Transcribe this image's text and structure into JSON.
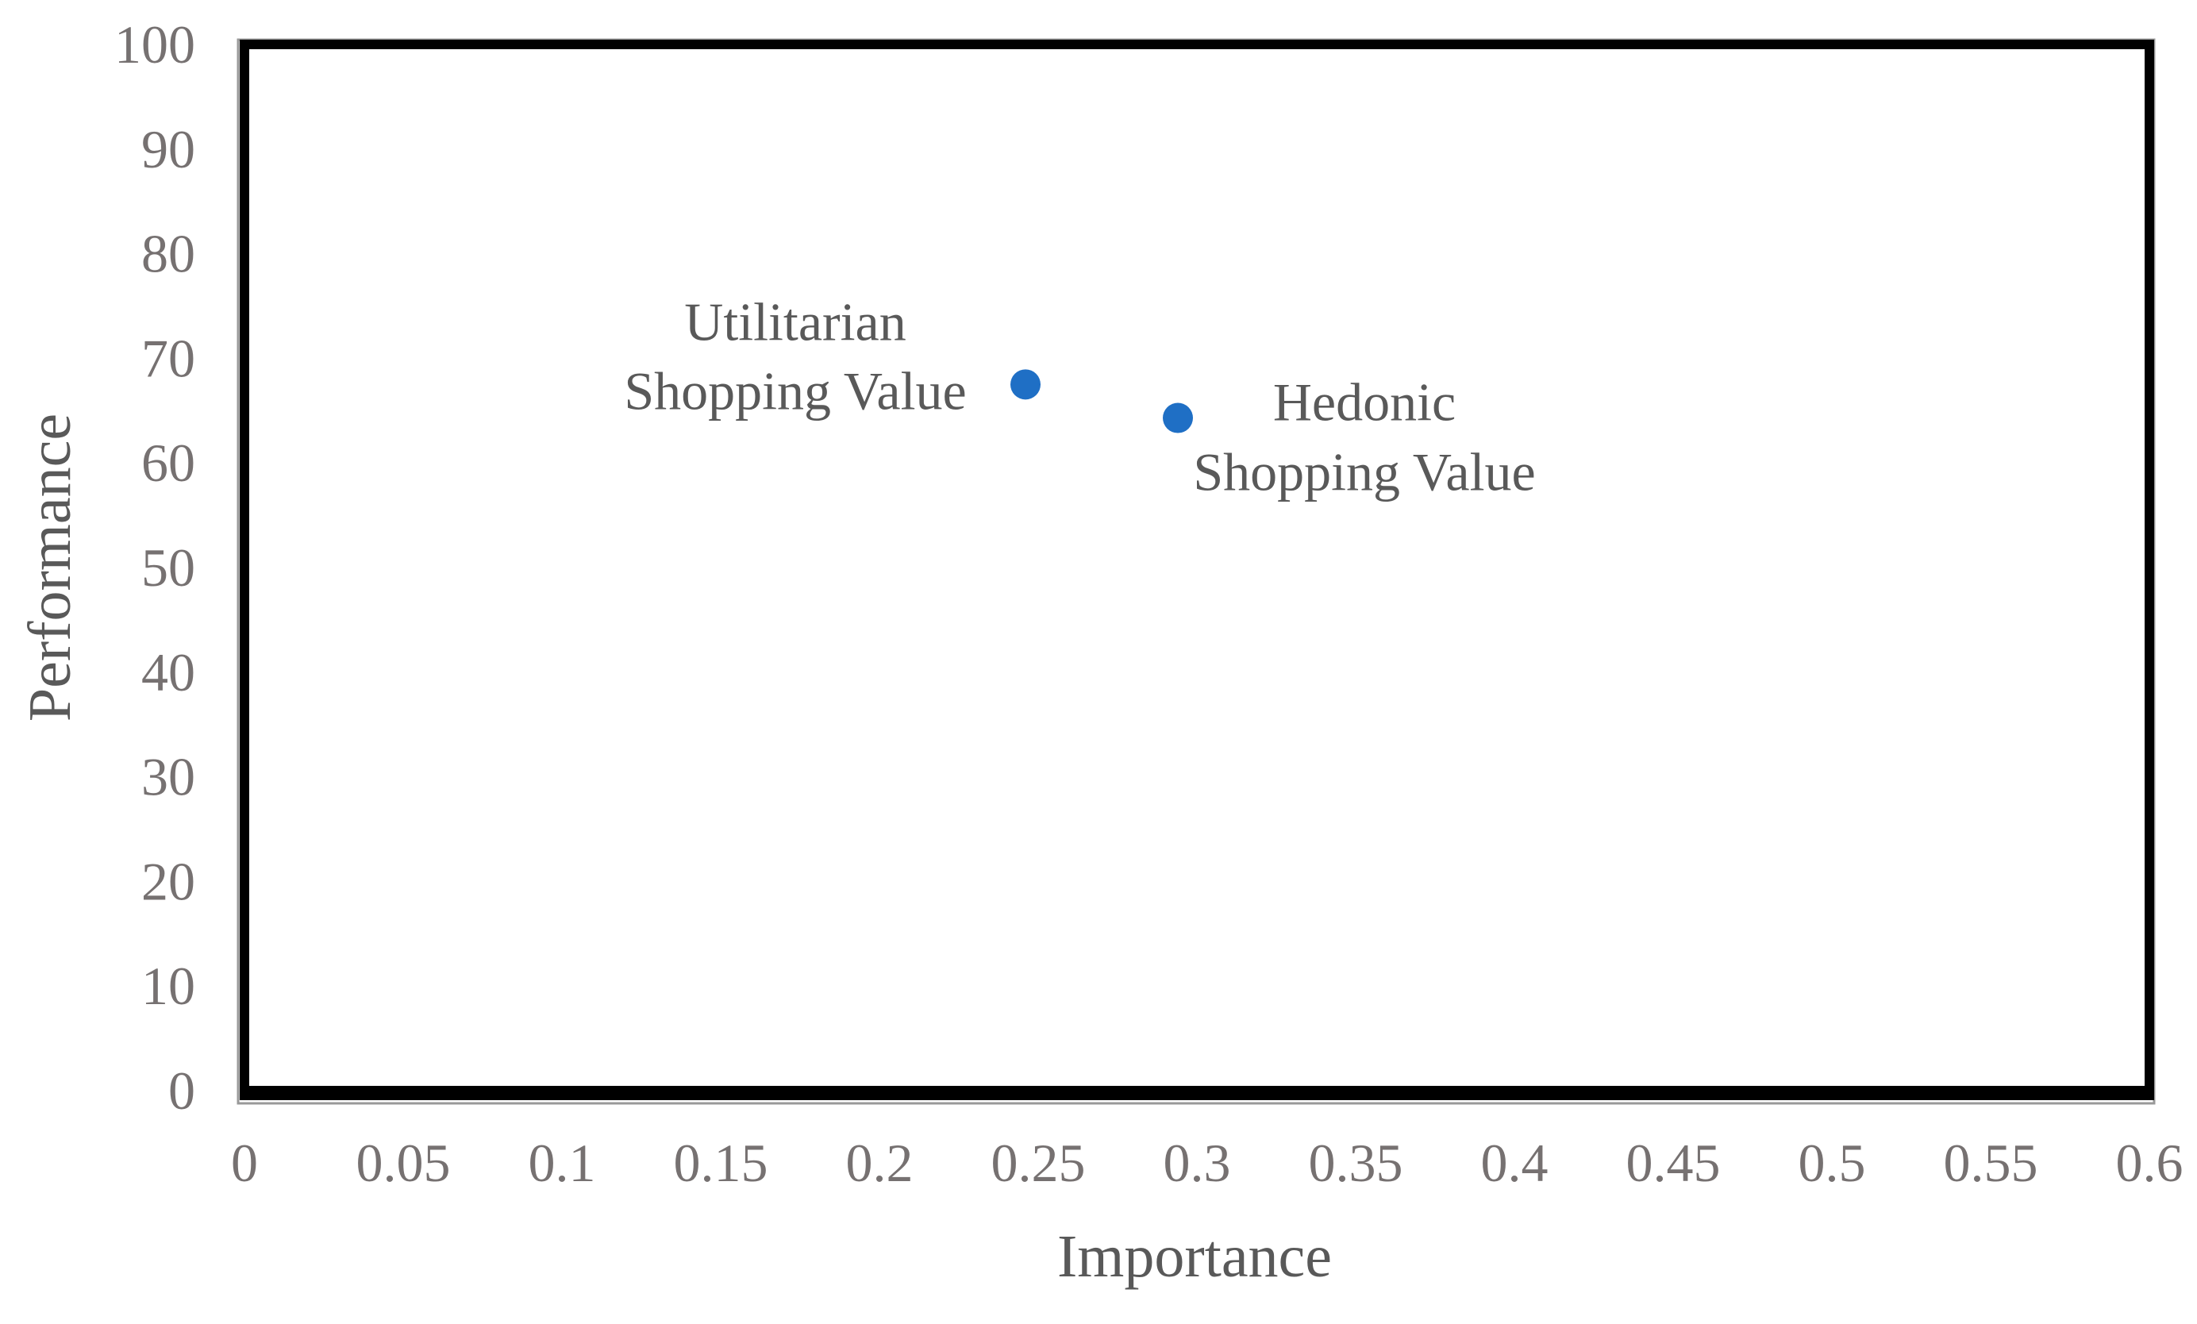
{
  "chart_data": {
    "type": "scatter",
    "title": "",
    "xlabel": "Importance",
    "ylabel": "Performance",
    "xlim": [
      0,
      0.6
    ],
    "ylim": [
      0,
      100
    ],
    "x_ticks": [
      "0",
      "0.05",
      "0.1",
      "0.15",
      "0.2",
      "0.25",
      "0.3",
      "0.35",
      "0.4",
      "0.45",
      "0.5",
      "0.55",
      "0.6"
    ],
    "y_ticks": [
      "0",
      "10",
      "20",
      "30",
      "40",
      "50",
      "60",
      "70",
      "80",
      "90",
      "100"
    ],
    "grid": false,
    "legend": "none",
    "marker_color": "#1f6fc5",
    "points": [
      {
        "label_lines": [
          "Utilitarian",
          "Shopping Value"
        ],
        "x": 0.246,
        "y": 67.5
      },
      {
        "label_lines": [
          "Hedonic",
          "Shopping Value"
        ],
        "x": 0.294,
        "y": 64.3
      }
    ]
  }
}
